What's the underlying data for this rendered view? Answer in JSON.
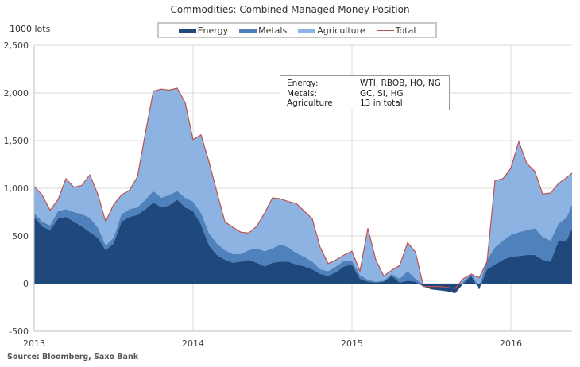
{
  "chart_data": {
    "type": "area",
    "title": "Commodities: Combined Managed Money Position",
    "ylabel": "1000 lots",
    "xlabel": "",
    "ylim": [
      -500,
      2500
    ],
    "yticks": [
      "2,500",
      "2,000",
      "1,500",
      "1,000",
      "500",
      "0",
      "-500"
    ],
    "ytick_values": [
      2500,
      2000,
      1500,
      1000,
      500,
      0,
      -500
    ],
    "xticks": [
      "2013",
      "2014",
      "2015",
      "2016"
    ],
    "xtick_values": [
      2013,
      2014,
      2015,
      2016
    ],
    "xlim": [
      2013,
      2016.385
    ],
    "grid": true,
    "legend_position": "top-center",
    "colors": {
      "energy": "#1f497d",
      "metals": "#4f81bd",
      "agriculture": "#8db3e2",
      "total": "#c0504d"
    },
    "x": [
      2013.0,
      2013.05,
      2013.1,
      2013.15,
      2013.2,
      2013.25,
      2013.3,
      2013.35,
      2013.4,
      2013.45,
      2013.5,
      2013.55,
      2013.6,
      2013.65,
      2013.7,
      2013.75,
      2013.8,
      2013.85,
      2013.9,
      2013.95,
      2014.0,
      2014.05,
      2014.1,
      2014.15,
      2014.2,
      2014.25,
      2014.3,
      2014.35,
      2014.4,
      2014.45,
      2014.5,
      2014.55,
      2014.6,
      2014.65,
      2014.7,
      2014.75,
      2014.8,
      2014.85,
      2014.9,
      2014.95,
      2015.0,
      2015.05,
      2015.1,
      2015.15,
      2015.2,
      2015.25,
      2015.3,
      2015.35,
      2015.4,
      2015.45,
      2015.5,
      2015.55,
      2015.6,
      2015.65,
      2015.7,
      2015.75,
      2015.8,
      2015.85,
      2015.9,
      2015.95,
      2016.0,
      2016.05,
      2016.1,
      2016.15,
      2016.2,
      2016.25,
      2016.3,
      2016.35,
      2016.385
    ],
    "series": [
      {
        "name": "Energy",
        "values": [
          700,
          600,
          560,
          680,
          700,
          650,
          600,
          540,
          480,
          350,
          420,
          650,
          700,
          720,
          780,
          850,
          800,
          820,
          880,
          800,
          760,
          620,
          400,
          300,
          250,
          220,
          230,
          250,
          220,
          180,
          220,
          230,
          230,
          200,
          180,
          150,
          100,
          80,
          120,
          180,
          200,
          50,
          20,
          10,
          20,
          80,
          10,
          30,
          20,
          -30,
          -60,
          -70,
          -80,
          -100,
          0,
          80,
          -60,
          150,
          200,
          250,
          280,
          290,
          300,
          300,
          250,
          230,
          450,
          450,
          580
        ]
      },
      {
        "name": "Metals",
        "values": [
          40,
          50,
          50,
          80,
          80,
          100,
          130,
          150,
          110,
          50,
          60,
          80,
          80,
          80,
          100,
          120,
          100,
          110,
          90,
          100,
          100,
          120,
          130,
          120,
          100,
          90,
          80,
          100,
          150,
          160,
          150,
          180,
          150,
          120,
          100,
          80,
          50,
          50,
          60,
          60,
          40,
          40,
          20,
          10,
          10,
          20,
          40,
          100,
          30,
          20,
          10,
          10,
          20,
          20,
          20,
          20,
          30,
          100,
          180,
          200,
          230,
          250,
          260,
          280,
          240,
          220,
          180,
          240,
          250
        ]
      },
      {
        "name": "Agriculture",
        "values": [
          280,
          280,
          160,
          120,
          320,
          260,
          300,
          450,
          350,
          250,
          350,
          200,
          200,
          320,
          700,
          1050,
          1140,
          1100,
          1080,
          1000,
          650,
          820,
          750,
          540,
          300,
          280,
          230,
          180,
          230,
          400,
          530,
          480,
          480,
          520,
          480,
          450,
          230,
          80,
          70,
          60,
          100,
          40,
          540,
          230,
          50,
          40,
          140,
          300,
          280,
          20,
          20,
          30,
          20,
          30,
          30,
          0,
          90,
          -20,
          700,
          650,
          700,
          950,
          700,
          600,
          450,
          500,
          420,
          420,
          330
        ]
      },
      {
        "name": "Total",
        "values": [
          1020,
          930,
          770,
          880,
          1100,
          1010,
          1030,
          1140,
          940,
          650,
          830,
          930,
          980,
          1120,
          1580,
          2020,
          2040,
          2030,
          2050,
          1900,
          1510,
          1560,
          1280,
          960,
          650,
          590,
          540,
          530,
          600,
          740,
          900,
          890,
          860,
          840,
          760,
          680,
          380,
          210,
          250,
          300,
          340,
          130,
          580,
          250,
          80,
          140,
          190,
          430,
          330,
          -30,
          -30,
          -30,
          -40,
          -50,
          50,
          100,
          60,
          230,
          1080,
          1100,
          1210,
          1490,
          1260,
          1180,
          940,
          950,
          1050,
          1110,
          1160
        ]
      }
    ]
  },
  "legend": {
    "items": [
      "Energy",
      "Metals",
      "Agriculture",
      "Total"
    ]
  },
  "infobox": {
    "rows": [
      {
        "key": "Energy:",
        "value": "WTI, RBOB, HO, NG"
      },
      {
        "key": "Metals:",
        "value": "GC, SI, HG"
      },
      {
        "key": "Agriculture:",
        "value": "13 in total"
      }
    ]
  },
  "source": "Source: Bloomberg, Saxo Bank"
}
